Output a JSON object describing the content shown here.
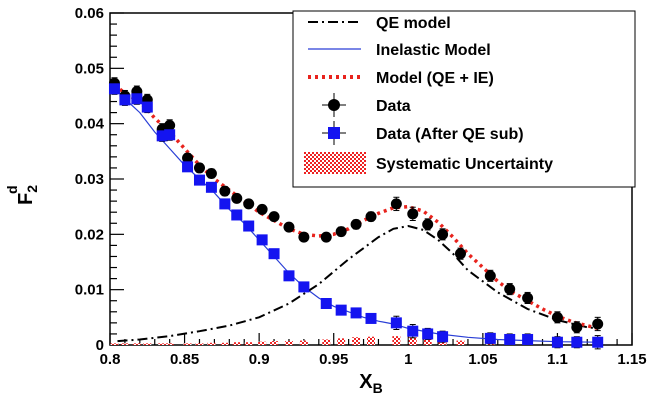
{
  "chart_data": {
    "type": "scatter",
    "xlabel": "X",
    "xlabel_sub": "B",
    "ylabel": "F",
    "ylabel_sub": "2",
    "ylabel_sup": "d",
    "xlim": [
      0.8,
      1.15
    ],
    "ylim": [
      0,
      0.06
    ],
    "x_ticks": [
      0.8,
      0.85,
      0.9,
      0.95,
      1,
      1.05,
      1.1,
      1.15
    ],
    "x_tick_labels": [
      "0.8",
      "0.85",
      "0.9",
      "0.95",
      "1",
      "1.05",
      "1.1",
      "1.15"
    ],
    "y_ticks": [
      0,
      0.01,
      0.02,
      0.03,
      0.04,
      0.05,
      0.06
    ],
    "y_tick_labels": [
      "0",
      "0.01",
      "0.02",
      "0.03",
      "0.04",
      "0.05",
      "0.06"
    ],
    "grid": false,
    "legend_position": "top-right",
    "colors": {
      "qe_model": "#000000",
      "inelastic_model": "#2a3fd6",
      "total_model": "#e8231d",
      "data": "#000000",
      "data_after_qe_sub": "#1414f0",
      "systematic": "#ee2222"
    },
    "legend": [
      {
        "key": "qe_model",
        "label": "QE model",
        "style": "dash-dot"
      },
      {
        "key": "inelastic_model",
        "label": "Inelastic Model",
        "style": "line"
      },
      {
        "key": "total_model",
        "label": "Model (QE + IE)",
        "style": "dotted"
      },
      {
        "key": "data",
        "label": "Data",
        "style": "circle"
      },
      {
        "key": "data_after_qe_sub",
        "label": "Data (After QE sub)",
        "style": "square"
      },
      {
        "key": "systematic",
        "label": "Systematic Uncertainty",
        "style": "hatched-box"
      }
    ],
    "series": [
      {
        "key": "qe_model",
        "type": "line",
        "x": [
          0.805,
          0.82,
          0.84,
          0.86,
          0.88,
          0.9,
          0.92,
          0.94,
          0.96,
          0.98,
          0.99,
          1.0,
          1.01,
          1.02,
          1.03,
          1.04,
          1.06,
          1.08,
          1.1,
          1.12,
          1.127
        ],
        "y": [
          0.0007,
          0.001,
          0.0016,
          0.0025,
          0.0035,
          0.005,
          0.0075,
          0.011,
          0.0155,
          0.0195,
          0.021,
          0.0215,
          0.0208,
          0.019,
          0.0165,
          0.0135,
          0.0095,
          0.0065,
          0.0045,
          0.0032,
          0.003
        ]
      },
      {
        "key": "inelastic_model",
        "type": "line",
        "x": [
          0.803,
          0.81,
          0.82,
          0.83,
          0.84,
          0.85,
          0.86,
          0.87,
          0.88,
          0.89,
          0.9,
          0.91,
          0.92,
          0.93,
          0.94,
          0.95,
          0.96,
          0.97,
          0.98,
          0.99,
          1.0,
          1.02,
          1.04,
          1.06,
          1.08,
          1.1,
          1.127
        ],
        "y": [
          0.0465,
          0.0445,
          0.042,
          0.0385,
          0.0355,
          0.0325,
          0.03,
          0.0275,
          0.0245,
          0.022,
          0.019,
          0.016,
          0.013,
          0.0105,
          0.0085,
          0.007,
          0.006,
          0.005,
          0.0043,
          0.0038,
          0.003,
          0.002,
          0.0014,
          0.001,
          0.0008,
          0.0006,
          0.0005
        ]
      },
      {
        "key": "total_model",
        "type": "line",
        "x": [
          0.803,
          0.81,
          0.82,
          0.83,
          0.84,
          0.85,
          0.86,
          0.87,
          0.88,
          0.89,
          0.9,
          0.91,
          0.92,
          0.93,
          0.94,
          0.95,
          0.96,
          0.97,
          0.98,
          0.99,
          1.0,
          1.01,
          1.02,
          1.03,
          1.04,
          1.05,
          1.06,
          1.07,
          1.08,
          1.09,
          1.1,
          1.11,
          1.127
        ],
        "y": [
          0.047,
          0.0455,
          0.044,
          0.041,
          0.0385,
          0.0355,
          0.0325,
          0.03,
          0.028,
          0.026,
          0.024,
          0.0225,
          0.021,
          0.02,
          0.0197,
          0.02,
          0.021,
          0.0225,
          0.0238,
          0.0248,
          0.025,
          0.0242,
          0.0222,
          0.0195,
          0.0165,
          0.014,
          0.0115,
          0.0095,
          0.008,
          0.0065,
          0.0052,
          0.0042,
          0.003
        ]
      },
      {
        "key": "data",
        "type": "scatter",
        "x": [
          0.803,
          0.81,
          0.818,
          0.825,
          0.835,
          0.84,
          0.852,
          0.86,
          0.868,
          0.877,
          0.885,
          0.893,
          0.902,
          0.91,
          0.92,
          0.93,
          0.945,
          0.955,
          0.965,
          0.975,
          0.992,
          1.003,
          1.013,
          1.023,
          1.035,
          1.055,
          1.068,
          1.08,
          1.1,
          1.113,
          1.127
        ],
        "y": [
          0.0473,
          0.045,
          0.0458,
          0.0443,
          0.039,
          0.0397,
          0.0338,
          0.032,
          0.031,
          0.0278,
          0.0265,
          0.0255,
          0.0245,
          0.0232,
          0.0213,
          0.0195,
          0.0195,
          0.0205,
          0.0218,
          0.0232,
          0.0255,
          0.0237,
          0.0218,
          0.02,
          0.0165,
          0.0125,
          0.0101,
          0.0085,
          0.005,
          0.0032,
          0.0038
        ],
        "err": [
          0.001,
          0.001,
          0.001,
          0.001,
          0.001,
          0.001,
          0.0008,
          0.0008,
          0.0008,
          0.0008,
          0.0007,
          0.0007,
          0.0007,
          0.0007,
          0.0007,
          0.0007,
          0.0007,
          0.0008,
          0.0008,
          0.0008,
          0.0012,
          0.0012,
          0.001,
          0.001,
          0.001,
          0.001,
          0.001,
          0.001,
          0.001,
          0.001,
          0.0012
        ]
      },
      {
        "key": "data_after_qe_sub",
        "type": "scatter",
        "x": [
          0.803,
          0.81,
          0.818,
          0.825,
          0.835,
          0.84,
          0.852,
          0.86,
          0.868,
          0.877,
          0.885,
          0.893,
          0.902,
          0.91,
          0.92,
          0.93,
          0.945,
          0.955,
          0.965,
          0.975,
          0.992,
          1.003,
          1.013,
          1.023,
          1.055,
          1.068,
          1.08,
          1.1,
          1.113,
          1.127
        ],
        "y": [
          0.0463,
          0.0443,
          0.0445,
          0.043,
          0.0378,
          0.038,
          0.0322,
          0.0298,
          0.0285,
          0.0255,
          0.0235,
          0.0215,
          0.019,
          0.0165,
          0.0125,
          0.0105,
          0.0075,
          0.0063,
          0.0058,
          0.0048,
          0.004,
          0.0025,
          0.002,
          0.0015,
          0.0012,
          0.001,
          0.001,
          0.0005,
          0.0005,
          0.0005
        ],
        "err": [
          0.001,
          0.001,
          0.001,
          0.001,
          0.001,
          0.001,
          0.0008,
          0.0008,
          0.0008,
          0.0008,
          0.0007,
          0.0007,
          0.0007,
          0.0007,
          0.0007,
          0.0007,
          0.0007,
          0.0008,
          0.0008,
          0.0008,
          0.0012,
          0.0012,
          0.001,
          0.001,
          0.001,
          0.001,
          0.001,
          0.001,
          0.001,
          0.0012
        ]
      },
      {
        "key": "systematic",
        "type": "bar",
        "x": [
          0.803,
          0.81,
          0.818,
          0.825,
          0.835,
          0.84,
          0.852,
          0.86,
          0.868,
          0.877,
          0.885,
          0.893,
          0.902,
          0.91,
          0.92,
          0.93,
          0.945,
          0.955,
          0.965,
          0.975,
          0.992,
          1.003,
          1.013,
          1.023,
          1.035,
          1.055,
          1.068,
          1.08,
          1.1,
          1.113,
          1.127
        ],
        "y": [
          0.0003,
          0.0003,
          0.0003,
          0.0003,
          0.0003,
          0.0003,
          0.0003,
          0.0003,
          0.0004,
          0.0004,
          0.0005,
          0.0005,
          0.0006,
          0.0007,
          0.0007,
          0.0008,
          0.001,
          0.0012,
          0.0014,
          0.0015,
          0.0016,
          0.0014,
          0.0012,
          0.001,
          0.0008,
          0.0006,
          0.0005,
          0.0004,
          0.0003,
          0.0003,
          0.0003
        ]
      }
    ]
  }
}
